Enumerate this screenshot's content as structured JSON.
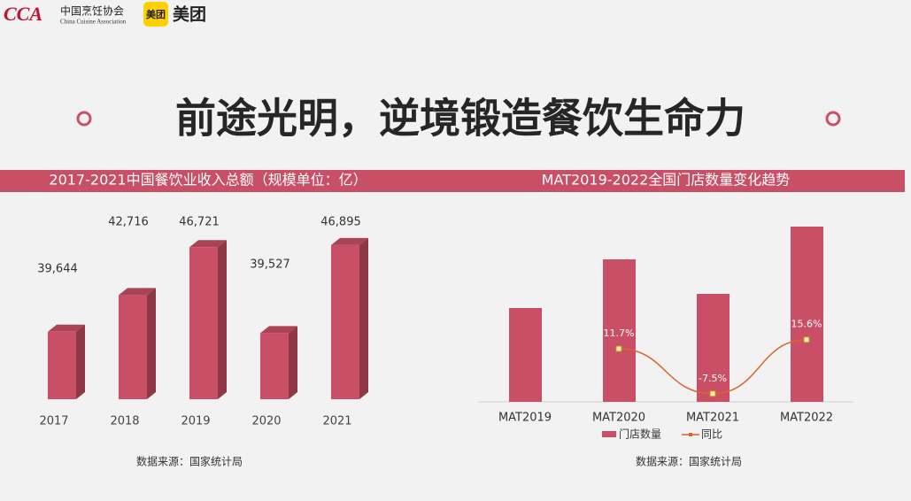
{
  "header": {
    "logo_text": "CCA",
    "org_name": "中国烹饪协会",
    "org_name_en": "China Cuisine Association",
    "brand_badge": "美团",
    "brand_name": "美团",
    "title": "前途光明，逆境锻造餐饮生命力"
  },
  "chart_data": [
    {
      "type": "bar",
      "title": "2017-2021中国餐饮业收入总额（规模单位：亿）",
      "categories": [
        "2017",
        "2018",
        "2019",
        "2020",
        "2021"
      ],
      "values": [
        39644,
        42716,
        46721,
        39527,
        46895
      ],
      "value_labels": [
        "39,644",
        "42,716",
        "46,721",
        "39,527",
        "46,895"
      ],
      "color": "#c94f66",
      "ylim": [
        34000,
        48000
      ],
      "source": "数据来源：国家统计局"
    },
    {
      "type": "combo",
      "title": "MAT2019-2022全国门店数量变化趋势",
      "categories": [
        "MAT2019",
        "MAT2020",
        "MAT2021",
        "MAT2022"
      ],
      "series": [
        {
          "name": "门店数量",
          "type": "bar",
          "color": "#c94f66",
          "values": [
            106,
            161,
            122,
            198
          ]
        },
        {
          "name": "同比",
          "type": "line",
          "axis": "y2",
          "color": "#e0622a",
          "values": [
            null,
            11.7,
            -7.5,
            15.6
          ],
          "value_labels": [
            null,
            "11.7%",
            "-7.5%",
            "15.6%"
          ]
        }
      ],
      "ylim": [
        0,
        214
      ],
      "y2lim": [
        -11,
        70
      ],
      "source": "数据来源：国家统计局"
    }
  ]
}
